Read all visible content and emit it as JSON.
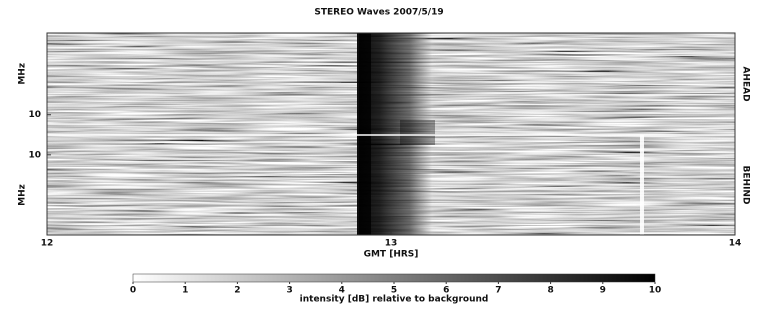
{
  "chart_data": {
    "type": "spectrogram",
    "title": "STEREO Waves 2007/5/19",
    "x_label": "GMT [HRS]",
    "xlim": [
      12,
      14
    ],
    "xticks": [
      12,
      13,
      14
    ],
    "log_scale": true,
    "panels": [
      {
        "name": "AHEAD",
        "y_label": "MHz",
        "ylim": [
          1.5,
          16
        ],
        "yticks": [
          10
        ],
        "inverted": true
      },
      {
        "name": "BEHIND",
        "y_label": "MHz",
        "ylim": [
          1.5,
          16
        ],
        "yticks": [
          10
        ],
        "inverted": false
      }
    ],
    "colorbar": {
      "label": "intensity [dB] relative to background",
      "clim": [
        0,
        10
      ],
      "ticks": [
        0,
        1,
        2,
        3,
        4,
        5,
        6,
        7,
        8,
        9,
        10
      ],
      "colors": [
        "#ffffff",
        "#000000"
      ]
    }
  }
}
